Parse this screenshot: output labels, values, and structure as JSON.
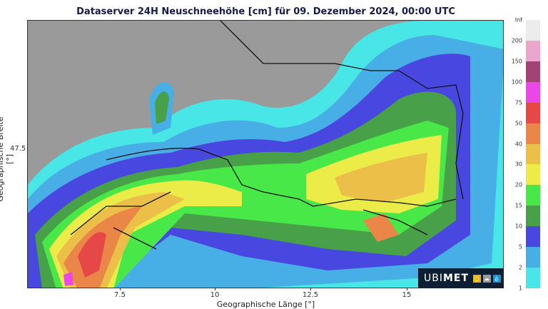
{
  "title": "Dataserver 24H Neuschneehöhe [cm] für 09. Dezember 2024, 00:00 UTC",
  "x_axis": {
    "label": "Geographische Länge [°]",
    "ticks": [
      "7.5",
      "10",
      "12.5",
      "15"
    ]
  },
  "y_axis": {
    "label": "Geographische Breite [°]",
    "ticks": [
      "47.5"
    ]
  },
  "colorbar": {
    "labels": [
      "Inf",
      "200",
      "150",
      "100",
      "75",
      "50",
      "40",
      "30",
      "20",
      "15",
      "10",
      "5",
      "2",
      "1"
    ],
    "colors": [
      "#ececec",
      "#eaa6cc",
      "#a24473",
      "#ea46e8",
      "#e64848",
      "#ea8648",
      "#ecc048",
      "#ecec48",
      "#48e848",
      "#48a048",
      "#4848e0",
      "#48aee6",
      "#48e6e6"
    ]
  },
  "logo": {
    "text_light": "UBI",
    "text_bold": "MET",
    "icons": [
      "sun-icon",
      "cloud-icon",
      "drop-icon"
    ],
    "icon_colors": [
      "#f0b400",
      "#9a9a9a",
      "#1e90d0"
    ]
  },
  "map_background": "#9a9a9a"
}
